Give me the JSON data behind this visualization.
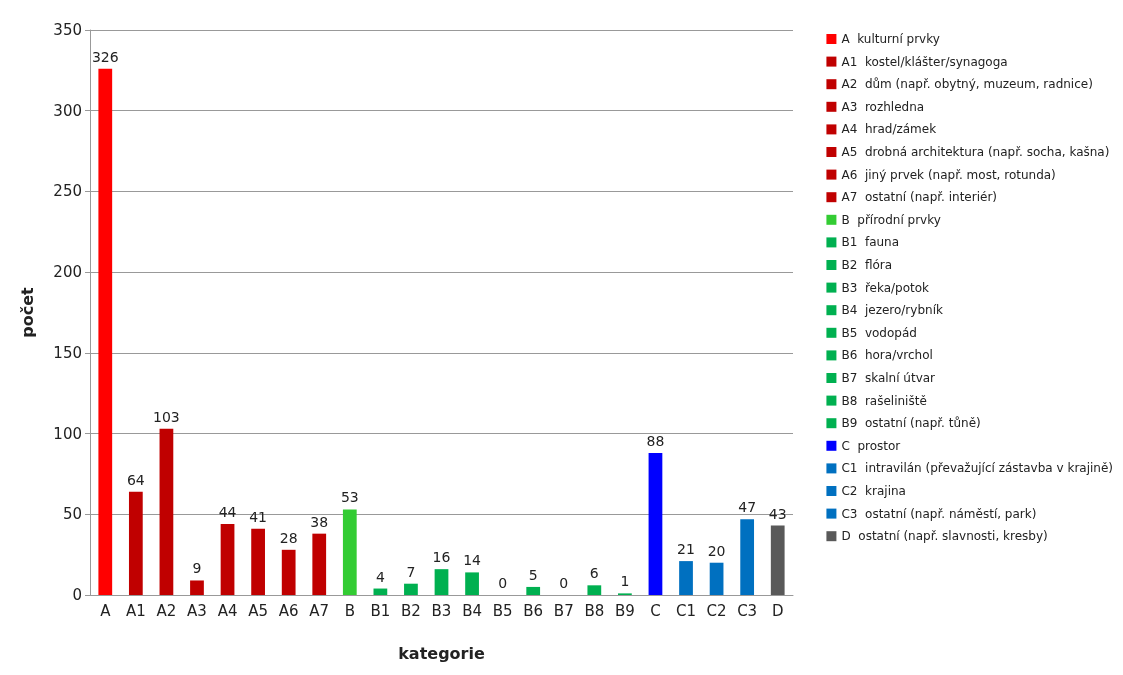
{
  "chart_data": {
    "type": "bar",
    "xlabel": "kategorie",
    "ylabel": "počet",
    "categories": [
      "A",
      "A1",
      "A2",
      "A3",
      "A4",
      "A5",
      "A6",
      "A7",
      "B",
      "B1",
      "B2",
      "B3",
      "B4",
      "B5",
      "B6",
      "B7",
      "B8",
      "B9",
      "C",
      "C1",
      "C2",
      "C3",
      "D"
    ],
    "series": [
      {
        "name": "A  kulturní prvky",
        "color": "#ff0000",
        "values": [
          326,
          null,
          null,
          null,
          null,
          null,
          null,
          null,
          null,
          null,
          null,
          null,
          null,
          null,
          null,
          null,
          null,
          null,
          null,
          null,
          null,
          null,
          null
        ]
      },
      {
        "name": "A1  kostel/klášter/synagoga",
        "color": "#c00000",
        "values": [
          null,
          64,
          null,
          null,
          null,
          null,
          null,
          null,
          null,
          null,
          null,
          null,
          null,
          null,
          null,
          null,
          null,
          null,
          null,
          null,
          null,
          null,
          null
        ]
      },
      {
        "name": "A2  dům (např. obytný, muzeum, radnice)",
        "color": "#c00000",
        "values": [
          null,
          null,
          103,
          null,
          null,
          null,
          null,
          null,
          null,
          null,
          null,
          null,
          null,
          null,
          null,
          null,
          null,
          null,
          null,
          null,
          null,
          null,
          null
        ]
      },
      {
        "name": "A3  rozhledna",
        "color": "#c00000",
        "values": [
          null,
          null,
          null,
          9,
          null,
          null,
          null,
          null,
          null,
          null,
          null,
          null,
          null,
          null,
          null,
          null,
          null,
          null,
          null,
          null,
          null,
          null,
          null
        ]
      },
      {
        "name": "A4  hrad/zámek",
        "color": "#c00000",
        "values": [
          null,
          null,
          null,
          null,
          44,
          null,
          null,
          null,
          null,
          null,
          null,
          null,
          null,
          null,
          null,
          null,
          null,
          null,
          null,
          null,
          null,
          null,
          null
        ]
      },
      {
        "name": "A5  drobná architektura (např. socha, kašna)",
        "color": "#c00000",
        "values": [
          null,
          null,
          null,
          null,
          null,
          41,
          null,
          null,
          null,
          null,
          null,
          null,
          null,
          null,
          null,
          null,
          null,
          null,
          null,
          null,
          null,
          null,
          null
        ]
      },
      {
        "name": "A6  jiný prvek (např. most, rotunda)",
        "color": "#c00000",
        "values": [
          null,
          null,
          null,
          null,
          null,
          null,
          28,
          null,
          null,
          null,
          null,
          null,
          null,
          null,
          null,
          null,
          null,
          null,
          null,
          null,
          null,
          null,
          null
        ]
      },
      {
        "name": "A7  ostatní (např. interiér)",
        "color": "#c00000",
        "values": [
          null,
          null,
          null,
          null,
          null,
          null,
          null,
          38,
          null,
          null,
          null,
          null,
          null,
          null,
          null,
          null,
          null,
          null,
          null,
          null,
          null,
          null,
          null
        ]
      },
      {
        "name": "B  přírodní prvky",
        "color": "#33cc33",
        "values": [
          null,
          null,
          null,
          null,
          null,
          null,
          null,
          null,
          53,
          null,
          null,
          null,
          null,
          null,
          null,
          null,
          null,
          null,
          null,
          null,
          null,
          null,
          null
        ]
      },
      {
        "name": "B1  fauna",
        "color": "#00b050",
        "values": [
          null,
          null,
          null,
          null,
          null,
          null,
          null,
          null,
          null,
          4,
          null,
          null,
          null,
          null,
          null,
          null,
          null,
          null,
          null,
          null,
          null,
          null,
          null
        ]
      },
      {
        "name": "B2  flóra",
        "color": "#00b050",
        "values": [
          null,
          null,
          null,
          null,
          null,
          null,
          null,
          null,
          null,
          null,
          7,
          null,
          null,
          null,
          null,
          null,
          null,
          null,
          null,
          null,
          null,
          null,
          null
        ]
      },
      {
        "name": "B3  řeka/potok",
        "color": "#00b050",
        "values": [
          null,
          null,
          null,
          null,
          null,
          null,
          null,
          null,
          null,
          null,
          null,
          16,
          null,
          null,
          null,
          null,
          null,
          null,
          null,
          null,
          null,
          null,
          null
        ]
      },
      {
        "name": "B4  jezero/rybník",
        "color": "#00b050",
        "values": [
          null,
          null,
          null,
          null,
          null,
          null,
          null,
          null,
          null,
          null,
          null,
          null,
          14,
          null,
          null,
          null,
          null,
          null,
          null,
          null,
          null,
          null,
          null
        ]
      },
      {
        "name": "B5  vodopád",
        "color": "#00b050",
        "values": [
          null,
          null,
          null,
          null,
          null,
          null,
          null,
          null,
          null,
          null,
          null,
          null,
          null,
          0,
          null,
          null,
          null,
          null,
          null,
          null,
          null,
          null,
          null
        ]
      },
      {
        "name": "B6  hora/vrchol",
        "color": "#00b050",
        "values": [
          null,
          null,
          null,
          null,
          null,
          null,
          null,
          null,
          null,
          null,
          null,
          null,
          null,
          null,
          5,
          null,
          null,
          null,
          null,
          null,
          null,
          null,
          null
        ]
      },
      {
        "name": "B7  skalní útvar",
        "color": "#00b050",
        "values": [
          null,
          null,
          null,
          null,
          null,
          null,
          null,
          null,
          null,
          null,
          null,
          null,
          null,
          null,
          null,
          0,
          null,
          null,
          null,
          null,
          null,
          null,
          null
        ]
      },
      {
        "name": "B8  rašeliniště",
        "color": "#00b050",
        "values": [
          null,
          null,
          null,
          null,
          null,
          null,
          null,
          null,
          null,
          null,
          null,
          null,
          null,
          null,
          null,
          null,
          6,
          null,
          null,
          null,
          null,
          null,
          null
        ]
      },
      {
        "name": "B9  ostatní (např. tůně)",
        "color": "#00b050",
        "values": [
          null,
          null,
          null,
          null,
          null,
          null,
          null,
          null,
          null,
          null,
          null,
          null,
          null,
          null,
          null,
          null,
          null,
          1,
          null,
          null,
          null,
          null,
          null
        ]
      },
      {
        "name": "C  prostor",
        "color": "#0000ff",
        "values": [
          null,
          null,
          null,
          null,
          null,
          null,
          null,
          null,
          null,
          null,
          null,
          null,
          null,
          null,
          null,
          null,
          null,
          null,
          88,
          null,
          null,
          null,
          null
        ]
      },
      {
        "name": "C1  intravilán (převažující zástavba v krajině)",
        "color": "#0070c0",
        "values": [
          null,
          null,
          null,
          null,
          null,
          null,
          null,
          null,
          null,
          null,
          null,
          null,
          null,
          null,
          null,
          null,
          null,
          null,
          null,
          21,
          null,
          null,
          null
        ]
      },
      {
        "name": "C2  krajina",
        "color": "#0070c0",
        "values": [
          null,
          null,
          null,
          null,
          null,
          null,
          null,
          null,
          null,
          null,
          null,
          null,
          null,
          null,
          null,
          null,
          null,
          null,
          null,
          null,
          20,
          null,
          null
        ]
      },
      {
        "name": "C3  ostatní (např. náměstí, park)",
        "color": "#0070c0",
        "values": [
          null,
          null,
          null,
          null,
          null,
          null,
          null,
          null,
          null,
          null,
          null,
          null,
          null,
          null,
          null,
          null,
          null,
          null,
          null,
          null,
          null,
          47,
          null
        ]
      },
      {
        "name": "D  ostatní (např. slavnosti, kresby)",
        "color": "#595959",
        "values": [
          null,
          null,
          null,
          null,
          null,
          null,
          null,
          null,
          null,
          null,
          null,
          null,
          null,
          null,
          null,
          null,
          null,
          null,
          null,
          null,
          null,
          null,
          43
        ]
      }
    ],
    "ylim": [
      0,
      350
    ],
    "yticks": [
      0,
      50,
      100,
      150,
      200,
      250,
      300,
      350
    ],
    "grid": "y",
    "legend": "right",
    "data_labels": true
  }
}
